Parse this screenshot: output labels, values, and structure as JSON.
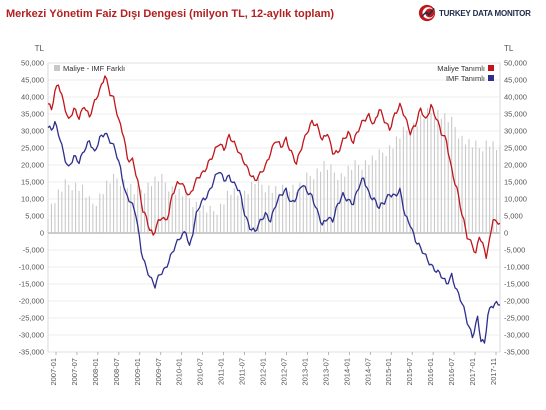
{
  "chart_data": {
    "type": "line",
    "title": "Merkezi Yönetim Faiz Dışı Dengesi (milyon TL, 12-aylık toplam)",
    "brand": "TURKEY DATA MONITOR",
    "unit_left": "TL",
    "unit_right": "TL",
    "ylim": [
      -35000,
      50000
    ],
    "y_ticks": [
      50000,
      45000,
      40000,
      35000,
      30000,
      25000,
      20000,
      15000,
      10000,
      5000,
      0,
      -5000,
      -10000,
      -15000,
      -20000,
      -25000,
      -30000,
      -35000
    ],
    "y_tick_labels": [
      "50,000",
      "45,000",
      "40,000",
      "35,000",
      "30,000",
      "25,000",
      "20,000",
      "15,000",
      "10,000",
      "5,000",
      "0",
      "-5,000",
      "-10,000",
      "-15,000",
      "-20,000",
      "-25,000",
      "-30,000",
      "-35,000"
    ],
    "x_start": "2007-01",
    "x_end": "2017-11",
    "x_tick_labels": [
      "2007-01",
      "2007-07",
      "2008-01",
      "2008-07",
      "2009-01",
      "2009-07",
      "2010-01",
      "2010-07",
      "2011-01",
      "2011-07",
      "2012-01",
      "2012-07",
      "2013-01",
      "2013-07",
      "2014-01",
      "2014-07",
      "2015-01",
      "2015-07",
      "2016-01",
      "2016-07",
      "2017-01",
      "2017-11"
    ],
    "legend_left": [
      {
        "name": "Maliye - IMF Farklı",
        "color": "#c8c8c8"
      }
    ],
    "legend_right": [
      {
        "name": "Maliye Tanımlı",
        "color": "#c0161b"
      },
      {
        "name": "IMF Tanımlı",
        "color": "#2e2f8c"
      }
    ],
    "series": [
      {
        "name": "Maliye Tanımlı",
        "color": "#c0161b",
        "keyframes": [
          [
            0,
            38000
          ],
          [
            2,
            36000
          ],
          [
            4,
            41000
          ],
          [
            6,
            44000
          ],
          [
            9,
            39000
          ],
          [
            12,
            33000
          ],
          [
            15,
            36000
          ],
          [
            18,
            34000
          ],
          [
            21,
            38000
          ],
          [
            24,
            34000
          ],
          [
            27,
            38000
          ],
          [
            30,
            42000
          ],
          [
            33,
            47000
          ],
          [
            36,
            41000
          ],
          [
            38,
            39000
          ],
          [
            41,
            33000
          ],
          [
            44,
            29000
          ],
          [
            46,
            22000
          ],
          [
            49,
            21000
          ],
          [
            52,
            15000
          ],
          [
            55,
            7000
          ],
          [
            57,
            5000
          ],
          [
            59,
            1000
          ],
          [
            61,
            -1000
          ],
          [
            64,
            3000
          ],
          [
            66,
            5000
          ],
          [
            68,
            4000
          ],
          [
            70,
            6000
          ],
          [
            72,
            11000
          ],
          [
            75,
            14000
          ],
          [
            77,
            15000
          ],
          [
            80,
            13000
          ],
          [
            82,
            11000
          ],
          [
            84,
            13000
          ],
          [
            87,
            16000
          ],
          [
            90,
            18000
          ],
          [
            93,
            21000
          ],
          [
            96,
            23000
          ],
          [
            99,
            26000
          ],
          [
            102,
            25000
          ],
          [
            105,
            29000
          ],
          [
            108,
            26000
          ],
          [
            111,
            23000
          ],
          [
            114,
            21000
          ],
          [
            117,
            18000
          ],
          [
            120,
            15000
          ],
          [
            123,
            17000
          ],
          [
            126,
            20000
          ],
          [
            129,
            24000
          ],
          [
            132,
            27000
          ],
          [
            135,
            25000
          ],
          [
            138,
            28000
          ],
          [
            141,
            24000
          ],
          [
            144,
            20000
          ],
          [
            147,
            25000
          ],
          [
            150,
            30000
          ],
          [
            153,
            33000
          ],
          [
            156,
            31000
          ],
          [
            159,
            27000
          ],
          [
            162,
            30000
          ],
          [
            165,
            24000
          ],
          [
            168,
            23000
          ],
          [
            171,
            27000
          ],
          [
            174,
            30000
          ],
          [
            177,
            27000
          ],
          [
            180,
            30000
          ],
          [
            183,
            33000
          ],
          [
            186,
            35000
          ],
          [
            189,
            32000
          ],
          [
            192,
            36000
          ],
          [
            195,
            33000
          ],
          [
            198,
            31000
          ],
          [
            201,
            35000
          ],
          [
            204,
            37000
          ],
          [
            207,
            34000
          ],
          [
            210,
            30000
          ],
          [
            213,
            32000
          ],
          [
            216,
            36000
          ],
          [
            219,
            33000
          ],
          [
            222,
            38000
          ],
          [
            225,
            34000
          ],
          [
            228,
            29000
          ],
          [
            231,
            27000
          ],
          [
            234,
            19000
          ],
          [
            237,
            13000
          ],
          [
            240,
            5000
          ],
          [
            243,
            -1000
          ],
          [
            246,
            -3000
          ],
          [
            248,
            -6000
          ],
          [
            250,
            -1000
          ],
          [
            252,
            -4000
          ],
          [
            254,
            -7000
          ],
          [
            256,
            -2000
          ],
          [
            258,
            5000
          ],
          [
            260,
            3000
          ],
          [
            262,
            3000
          ]
        ]
      },
      {
        "name": "IMF Tanımlı",
        "color": "#2e2f8c",
        "keyframes": [
          [
            0,
            31000
          ],
          [
            2,
            30000
          ],
          [
            4,
            32000
          ],
          [
            7,
            28000
          ],
          [
            10,
            22000
          ],
          [
            12,
            19000
          ],
          [
            15,
            22000
          ],
          [
            18,
            21000
          ],
          [
            21,
            25000
          ],
          [
            24,
            27000
          ],
          [
            27,
            23000
          ],
          [
            30,
            28000
          ],
          [
            33,
            30000
          ],
          [
            36,
            27000
          ],
          [
            39,
            24000
          ],
          [
            42,
            19000
          ],
          [
            45,
            12000
          ],
          [
            48,
            9000
          ],
          [
            51,
            5000
          ],
          [
            54,
            -5000
          ],
          [
            57,
            -10000
          ],
          [
            60,
            -14000
          ],
          [
            62,
            -16000
          ],
          [
            65,
            -12000
          ],
          [
            68,
            -10000
          ],
          [
            71,
            -7000
          ],
          [
            74,
            -4000
          ],
          [
            77,
            -1000
          ],
          [
            80,
            1000
          ],
          [
            82,
            -4000
          ],
          [
            84,
            0
          ],
          [
            86,
            5000
          ],
          [
            88,
            8000
          ],
          [
            90,
            10000
          ],
          [
            93,
            12000
          ],
          [
            96,
            15000
          ],
          [
            99,
            18000
          ],
          [
            102,
            16000
          ],
          [
            105,
            17000
          ],
          [
            108,
            14000
          ],
          [
            111,
            12000
          ],
          [
            114,
            6000
          ],
          [
            117,
            2000
          ],
          [
            120,
            0
          ],
          [
            123,
            3000
          ],
          [
            126,
            6000
          ],
          [
            129,
            4000
          ],
          [
            132,
            8000
          ],
          [
            135,
            11000
          ],
          [
            138,
            13000
          ],
          [
            141,
            9000
          ],
          [
            144,
            10000
          ],
          [
            147,
            14000
          ],
          [
            150,
            13000
          ],
          [
            153,
            11000
          ],
          [
            156,
            6000
          ],
          [
            159,
            2000
          ],
          [
            162,
            5000
          ],
          [
            165,
            4000
          ],
          [
            168,
            8000
          ],
          [
            171,
            11000
          ],
          [
            174,
            10000
          ],
          [
            177,
            9000
          ],
          [
            180,
            13000
          ],
          [
            183,
            16000
          ],
          [
            186,
            12000
          ],
          [
            189,
            10000
          ],
          [
            192,
            7000
          ],
          [
            195,
            9000
          ],
          [
            198,
            12000
          ],
          [
            201,
            11000
          ],
          [
            204,
            12000
          ],
          [
            207,
            5000
          ],
          [
            210,
            3000
          ],
          [
            213,
            -2000
          ],
          [
            216,
            -5000
          ],
          [
            219,
            -7000
          ],
          [
            222,
            -9000
          ],
          [
            225,
            -11000
          ],
          [
            228,
            -13000
          ],
          [
            231,
            -15000
          ],
          [
            234,
            -12000
          ],
          [
            237,
            -17000
          ],
          [
            240,
            -21000
          ],
          [
            243,
            -26000
          ],
          [
            246,
            -30000
          ],
          [
            249,
            -25000
          ],
          [
            251,
            -32000
          ],
          [
            253,
            -33000
          ],
          [
            255,
            -24000
          ],
          [
            257,
            -21000
          ],
          [
            260,
            -20500
          ],
          [
            262,
            -21000
          ]
        ]
      },
      {
        "name": "Maliye - IMF Farklı",
        "color": "#c8c8c8",
        "keyframes": [
          [
            0,
            6000
          ],
          [
            5,
            11000
          ],
          [
            10,
            14000
          ],
          [
            15,
            14500
          ],
          [
            20,
            13000
          ],
          [
            25,
            8000
          ],
          [
            30,
            11000
          ],
          [
            35,
            15000
          ],
          [
            40,
            16000
          ],
          [
            45,
            15000
          ],
          [
            50,
            12000
          ],
          [
            55,
            13000
          ],
          [
            60,
            15000
          ],
          [
            65,
            16000
          ],
          [
            70,
            14000
          ],
          [
            75,
            12000
          ],
          [
            80,
            11000
          ],
          [
            85,
            9000
          ],
          [
            90,
            7000
          ],
          [
            95,
            6000
          ],
          [
            100,
            8000
          ],
          [
            105,
            12000
          ],
          [
            110,
            11000
          ],
          [
            115,
            12000
          ],
          [
            120,
            15000
          ],
          [
            125,
            14000
          ],
          [
            130,
            13000
          ],
          [
            135,
            12000
          ],
          [
            140,
            14000
          ],
          [
            145,
            13000
          ],
          [
            150,
            16000
          ],
          [
            155,
            18000
          ],
          [
            160,
            20000
          ],
          [
            165,
            18000
          ],
          [
            170,
            17000
          ],
          [
            175,
            19000
          ],
          [
            180,
            20000
          ],
          [
            185,
            21000
          ],
          [
            190,
            22000
          ],
          [
            195,
            24000
          ],
          [
            200,
            26000
          ],
          [
            205,
            29000
          ],
          [
            210,
            31000
          ],
          [
            215,
            33000
          ],
          [
            220,
            35000
          ],
          [
            225,
            36000
          ],
          [
            230,
            34000
          ],
          [
            235,
            32000
          ],
          [
            240,
            28000
          ],
          [
            245,
            26000
          ],
          [
            250,
            25000
          ],
          [
            255,
            27000
          ],
          [
            260,
            25000
          ],
          [
            262,
            24000
          ]
        ]
      }
    ]
  }
}
